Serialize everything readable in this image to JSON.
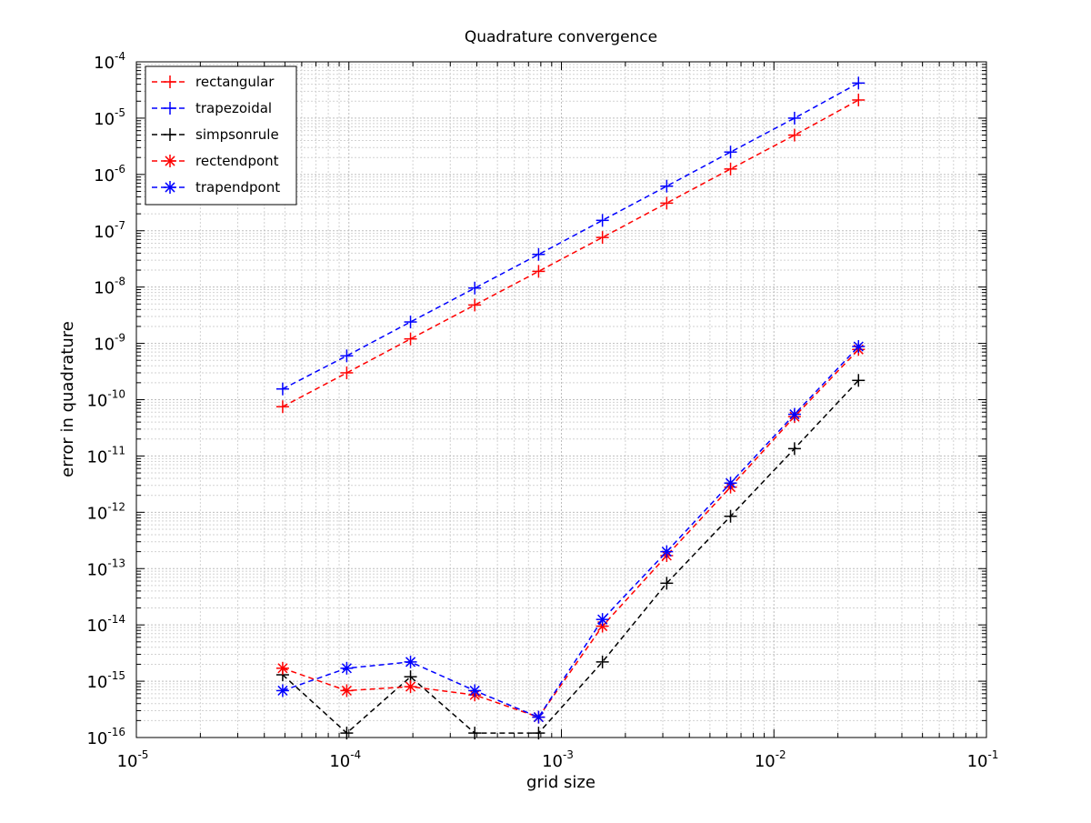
{
  "chart_data": {
    "type": "line",
    "title": "Quadrature convergence",
    "xlabel": "grid size",
    "ylabel": "error in quadrature",
    "xscale": "log",
    "yscale": "log",
    "xlim": [
      1e-05,
      0.1
    ],
    "ylim": [
      1e-16,
      0.0001
    ],
    "grid": "major and minor",
    "legend_location": "top-left",
    "x_ticks": [
      {
        "base": "10",
        "exp": "-5",
        "value": 1e-05
      },
      {
        "base": "10",
        "exp": "-4",
        "value": 0.0001
      },
      {
        "base": "10",
        "exp": "-3",
        "value": 0.001
      },
      {
        "base": "10",
        "exp": "-2",
        "value": 0.01
      },
      {
        "base": "10",
        "exp": "-1",
        "value": 0.1
      }
    ],
    "y_ticks": [
      {
        "base": "10",
        "exp": "-16",
        "value": 1e-16
      },
      {
        "base": "10",
        "exp": "-15",
        "value": 1e-15
      },
      {
        "base": "10",
        "exp": "-14",
        "value": 1e-14
      },
      {
        "base": "10",
        "exp": "-13",
        "value": 1e-13
      },
      {
        "base": "10",
        "exp": "-12",
        "value": 1e-12
      },
      {
        "base": "10",
        "exp": "-11",
        "value": 1e-11
      },
      {
        "base": "10",
        "exp": "-10",
        "value": 1e-10
      },
      {
        "base": "10",
        "exp": "-9",
        "value": 1e-09
      },
      {
        "base": "10",
        "exp": "-8",
        "value": 1e-08
      },
      {
        "base": "10",
        "exp": "-7",
        "value": 1e-07
      },
      {
        "base": "10",
        "exp": "-6",
        "value": 1e-06
      },
      {
        "base": "10",
        "exp": "-5",
        "value": 1e-05
      },
      {
        "base": "10",
        "exp": "-4",
        "value": 0.0001
      }
    ],
    "x": [
      4.88e-05,
      9.77e-05,
      0.000195,
      0.000391,
      0.000781,
      0.00156,
      0.00313,
      0.00625,
      0.0125,
      0.025
    ],
    "series": [
      {
        "name": "rectangular",
        "color": "#ff0000",
        "marker": "plus",
        "line": "dashed",
        "values": [
          7.5e-11,
          3e-10,
          1.2e-09,
          4.8e-09,
          1.9e-08,
          7.6e-08,
          3.1e-07,
          1.25e-06,
          5e-06,
          2.1e-05
        ]
      },
      {
        "name": "trapezoidal",
        "color": "#0000ff",
        "marker": "plus",
        "line": "dashed",
        "values": [
          1.55e-10,
          6e-10,
          2.4e-09,
          9.6e-09,
          3.8e-08,
          1.53e-07,
          6.2e-07,
          2.5e-06,
          1e-05,
          4.2e-05
        ]
      },
      {
        "name": "simpsonrule",
        "color": "#000000",
        "marker": "plus",
        "line": "dashed",
        "values": [
          1.3e-15,
          1.2e-16,
          1.2e-15,
          1.2e-16,
          1.2e-16,
          2.2e-15,
          5.5e-14,
          8.5e-13,
          1.35e-11,
          2.2e-10
        ]
      },
      {
        "name": "rectendpont",
        "color": "#ff0000",
        "marker": "asterisk",
        "line": "dashed",
        "values": [
          1.7e-15,
          6.8e-16,
          8e-16,
          5.7e-16,
          2.3e-16,
          9.5e-15,
          1.7e-13,
          2.8e-12,
          5e-11,
          7.8e-10
        ]
      },
      {
        "name": "trapendpont",
        "color": "#0000ff",
        "marker": "asterisk",
        "line": "dashed",
        "values": [
          6.8e-16,
          1.7e-15,
          2.2e-15,
          6.8e-16,
          2.3e-16,
          1.25e-14,
          2e-13,
          3.3e-12,
          5.5e-11,
          8.8e-10
        ]
      }
    ]
  }
}
